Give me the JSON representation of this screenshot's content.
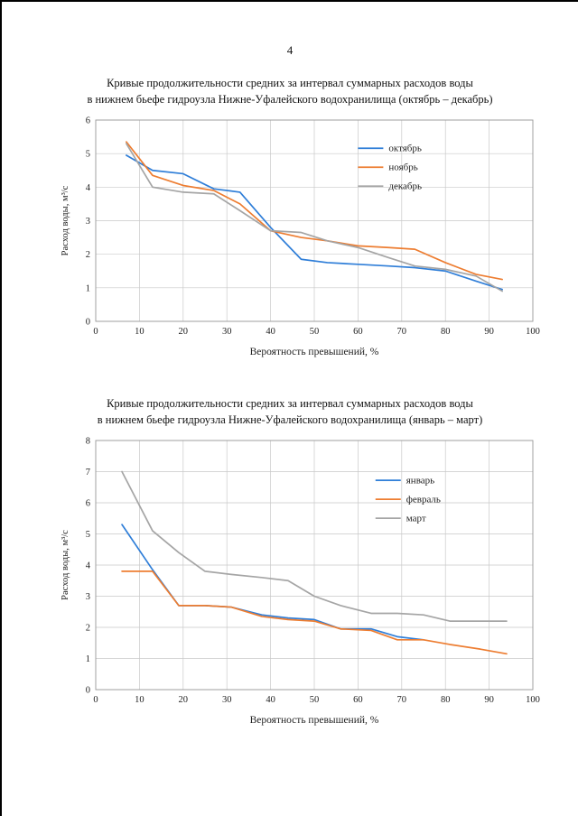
{
  "page": {
    "number": "4"
  },
  "chart_data": [
    {
      "type": "line",
      "title_line1": "Кривые продолжительности средних за интервал суммарных расходов воды",
      "title_line2": "в нижнем бьефе гидроузла Нижне-Уфалейского водохранилища (октябрь – декабрь)",
      "xlabel": "Вероятность превышений, %",
      "ylabel": "Расход воды, м³/с",
      "xlim": [
        0,
        100
      ],
      "ylim": [
        0,
        6
      ],
      "xticks": [
        0,
        10,
        20,
        30,
        40,
        50,
        60,
        70,
        80,
        90,
        100
      ],
      "yticks": [
        0,
        1,
        2,
        3,
        4,
        5,
        6
      ],
      "grid": true,
      "legend": {
        "x": 0.6,
        "y": 0.14,
        "position": "inside-top-right"
      },
      "series": [
        {
          "name": "октябрь",
          "color": "#2f7ed8",
          "x": [
            7,
            13,
            20,
            27,
            33,
            40,
            47,
            53,
            60,
            67,
            73,
            80,
            87,
            93
          ],
          "y": [
            4.95,
            4.5,
            4.4,
            3.95,
            3.85,
            2.8,
            1.85,
            1.75,
            1.7,
            1.65,
            1.6,
            1.5,
            1.2,
            0.95
          ]
        },
        {
          "name": "ноябрь",
          "color": "#ed7d31",
          "x": [
            7,
            13,
            20,
            27,
            33,
            40,
            47,
            53,
            60,
            67,
            73,
            80,
            87,
            93
          ],
          "y": [
            5.35,
            4.35,
            4.05,
            3.9,
            3.5,
            2.7,
            2.5,
            2.4,
            2.25,
            2.2,
            2.15,
            1.75,
            1.4,
            1.25
          ]
        },
        {
          "name": "декабрь",
          "color": "#a5a5a5",
          "x": [
            7,
            13,
            20,
            27,
            33,
            40,
            47,
            53,
            60,
            67,
            73,
            80,
            87,
            93
          ],
          "y": [
            5.3,
            4.0,
            3.85,
            3.8,
            3.3,
            2.7,
            2.65,
            2.4,
            2.2,
            1.9,
            1.65,
            1.55,
            1.35,
            0.9
          ]
        }
      ]
    },
    {
      "type": "line",
      "title_line1": "Кривые продолжительности средних за интервал суммарных расходов воды",
      "title_line2": "в нижнем бьефе гидроузла Нижне-Уфалейского водохранилища (январь – март)",
      "xlabel": "Вероятность превышений, %",
      "ylabel": "Расход воды, м³/с",
      "xlim": [
        0,
        100
      ],
      "ylim": [
        0,
        8
      ],
      "xticks": [
        0,
        10,
        20,
        30,
        40,
        50,
        60,
        70,
        80,
        90,
        100
      ],
      "yticks": [
        0,
        1,
        2,
        3,
        4,
        5,
        6,
        7,
        8
      ],
      "grid": true,
      "legend": {
        "x": 0.64,
        "y": 0.16,
        "position": "inside-top-right"
      },
      "series": [
        {
          "name": "январь",
          "color": "#2f7ed8",
          "x": [
            6,
            13,
            19,
            25,
            31,
            38,
            44,
            50,
            56,
            63,
            69,
            75
          ],
          "y": [
            5.3,
            3.85,
            2.7,
            2.7,
            2.65,
            2.4,
            2.3,
            2.25,
            1.95,
            1.95,
            1.7,
            1.6
          ]
        },
        {
          "name": "февраль",
          "color": "#ed7d31",
          "x": [
            6,
            13,
            19,
            25,
            31,
            38,
            44,
            50,
            56,
            63,
            69,
            75,
            81,
            88,
            94
          ],
          "y": [
            3.8,
            3.8,
            2.7,
            2.7,
            2.65,
            2.35,
            2.25,
            2.2,
            1.95,
            1.9,
            1.6,
            1.6,
            1.45,
            1.3,
            1.15
          ]
        },
        {
          "name": "март",
          "color": "#a5a5a5",
          "x": [
            6,
            13,
            19,
            25,
            31,
            38,
            44,
            50,
            56,
            63,
            69,
            75,
            81,
            88,
            94
          ],
          "y": [
            7.0,
            5.1,
            4.4,
            3.8,
            3.7,
            3.6,
            3.5,
            3.0,
            2.7,
            2.45,
            2.45,
            2.4,
            2.2,
            2.2,
            2.2
          ]
        }
      ]
    }
  ]
}
